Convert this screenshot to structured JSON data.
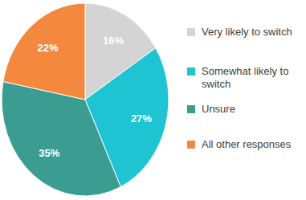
{
  "chart_data": {
    "type": "pie",
    "categories": [
      "Very likely to switch",
      "Somewhat likely to switch",
      "Unsure",
      "All other responses"
    ],
    "values": [
      16,
      27,
      35,
      22
    ],
    "value_labels": [
      "16%",
      "27%",
      "35%",
      "22%"
    ],
    "colors": [
      "#d4d4d4",
      "#1ec4d2",
      "#3b9c92",
      "#f5883f"
    ],
    "data_labels": true,
    "legend": "right"
  }
}
